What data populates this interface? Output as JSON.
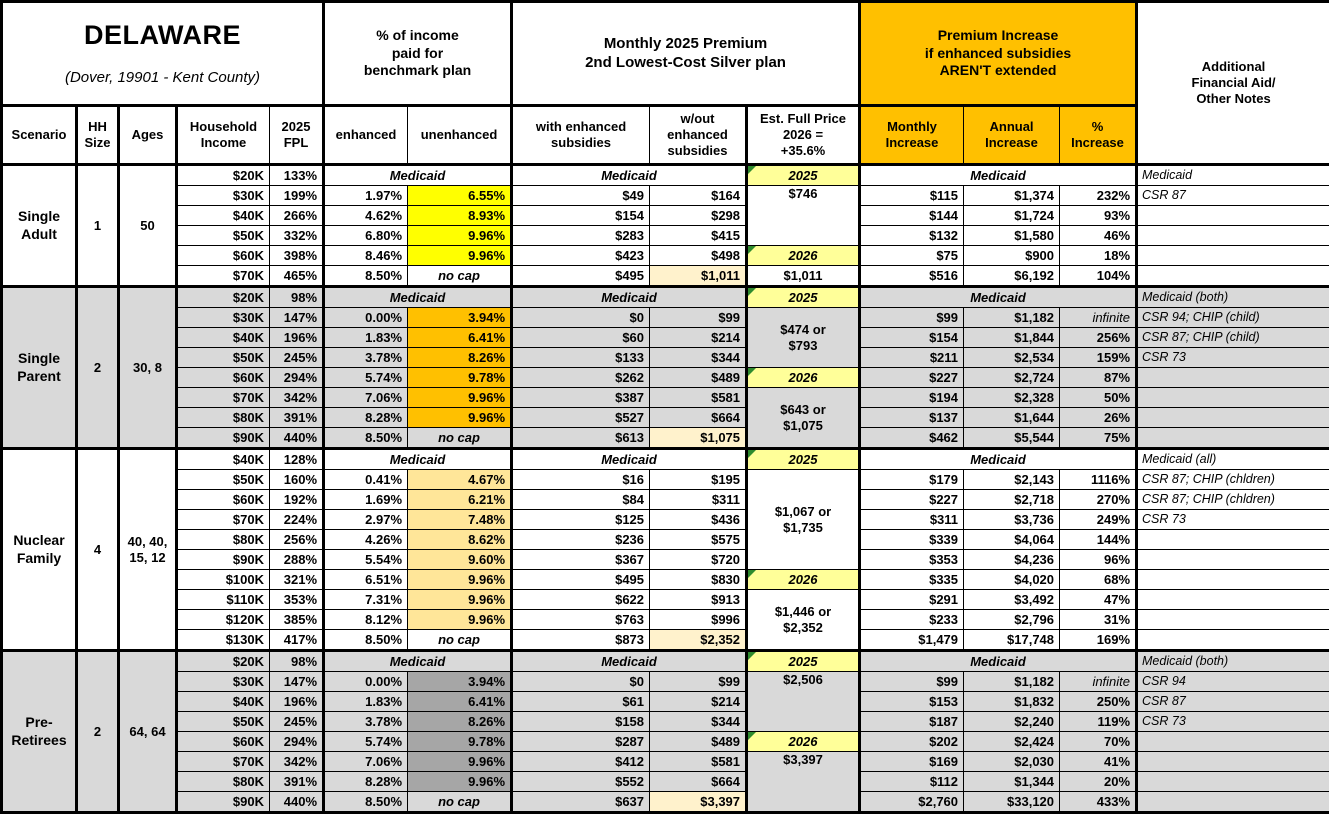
{
  "title": "DELAWARE",
  "subtitle": "(Dover, 19901 - Kent County)",
  "labels": {
    "medicaid": "Medicaid",
    "no_cap": "no cap"
  },
  "group_headers": {
    "pct_income": "% of income\npaid for\nbenchmark plan",
    "premium": "Monthly 2025 Premium\n2nd Lowest-Cost Silver plan",
    "increase": "Premium Increase\nif enhanced subsidies\nAREN'T extended",
    "notes": "Additional\nFinancial Aid/\nOther Notes"
  },
  "col_headers": {
    "scenario": "Scenario",
    "hh": "HH\nSize",
    "ages": "Ages",
    "income": "Household\nIncome",
    "fpl": "2025\nFPL",
    "enhanced": "enhanced",
    "unenhanced": "unenhanced",
    "with_sub": "with enhanced\nsubsidies",
    "wo_sub": "w/out\nenhanced\nsubsidies",
    "full_price": "Est. Full Price\n2026 =\n+35.6%",
    "monthly": "Monthly\nIncrease",
    "annual": "Annual\nIncrease",
    "pct": "%\nIncrease"
  },
  "colors": {
    "header_orange": "#FFC000",
    "section_shade": "#D9D9D9",
    "year_highlight": "#FFFF99",
    "full_price_highlight": "#FFF2CC",
    "single_adult_unenhanced": "#FFFF00",
    "single_parent_unenhanced": "#FFC000",
    "nuclear_family_unenhanced": "#FFE699",
    "pre_retirees_unenhanced": "#A6A6A6",
    "comment_triangle_green": "#2E8B2E"
  },
  "sections": [
    {
      "name": "Single\nAdult",
      "hh_size": "1",
      "ages": "50",
      "shaded": false,
      "unenhanced_color": "#FFFF00",
      "rows": [
        {
          "income": "$20K",
          "fpl": "133%",
          "medicaid": true,
          "fp": {
            "text": "2025",
            "year": true
          },
          "note": "Medicaid"
        },
        {
          "income": "$30K",
          "fpl": "199%",
          "enh": "1.97%",
          "unenh": "6.55%",
          "ws": "$49",
          "wo": "$164",
          "fp": {
            "text": "$746",
            "span": 3,
            "top": true
          },
          "mo": "$115",
          "an": "$1,374",
          "pc": "232%",
          "note": "CSR 87"
        },
        {
          "income": "$40K",
          "fpl": "266%",
          "enh": "4.62%",
          "unenh": "8.93%",
          "ws": "$154",
          "wo": "$298",
          "mo": "$144",
          "an": "$1,724",
          "pc": "93%"
        },
        {
          "income": "$50K",
          "fpl": "332%",
          "enh": "6.80%",
          "unenh": "9.96%",
          "ws": "$283",
          "wo": "$415",
          "mo": "$132",
          "an": "$1,580",
          "pc": "46%"
        },
        {
          "income": "$60K",
          "fpl": "398%",
          "enh": "8.46%",
          "unenh": "9.96%",
          "ws": "$423",
          "wo": "$498",
          "fp": {
            "text": "2026",
            "year": true
          },
          "mo": "$75",
          "an": "$900",
          "pc": "18%"
        },
        {
          "income": "$70K",
          "fpl": "465%",
          "enh": "8.50%",
          "no_cap": true,
          "ws": "$495",
          "wo": "$1,011",
          "wo_hl": true,
          "fp": {
            "text": "$1,011"
          },
          "mo": "$516",
          "an": "$6,192",
          "pc": "104%"
        }
      ]
    },
    {
      "name": "Single\nParent",
      "hh_size": "2",
      "ages": "30, 8",
      "shaded": true,
      "unenhanced_color": "#FFC000",
      "rows": [
        {
          "income": "$20K",
          "fpl": "98%",
          "medicaid": true,
          "fp": {
            "text": "2025",
            "year": true
          },
          "note": "Medicaid (both)"
        },
        {
          "income": "$30K",
          "fpl": "147%",
          "enh": "0.00%",
          "unenh": "3.94%",
          "ws": "$0",
          "wo": "$99",
          "fp": {
            "text": "$474 or\n$793",
            "span": 3
          },
          "mo": "$99",
          "an": "$1,182",
          "pc": "infinite",
          "pct_italic": true,
          "note": "CSR 94; CHIP (child)"
        },
        {
          "income": "$40K",
          "fpl": "196%",
          "enh": "1.83%",
          "unenh": "6.41%",
          "ws": "$60",
          "wo": "$214",
          "mo": "$154",
          "an": "$1,844",
          "pc": "256%",
          "note": "CSR 87; CHIP (child)"
        },
        {
          "income": "$50K",
          "fpl": "245%",
          "enh": "3.78%",
          "unenh": "8.26%",
          "ws": "$133",
          "wo": "$344",
          "mo": "$211",
          "an": "$2,534",
          "pc": "159%",
          "note": "CSR 73"
        },
        {
          "income": "$60K",
          "fpl": "294%",
          "enh": "5.74%",
          "unenh": "9.78%",
          "ws": "$262",
          "wo": "$489",
          "fp": {
            "text": "2026",
            "year": true
          },
          "mo": "$227",
          "an": "$2,724",
          "pc": "87%"
        },
        {
          "income": "$70K",
          "fpl": "342%",
          "enh": "7.06%",
          "unenh": "9.96%",
          "ws": "$387",
          "wo": "$581",
          "fp": {
            "text": "$643 or\n$1,075",
            "span": 3
          },
          "mo": "$194",
          "an": "$2,328",
          "pc": "50%"
        },
        {
          "income": "$80K",
          "fpl": "391%",
          "enh": "8.28%",
          "unenh": "9.96%",
          "ws": "$527",
          "wo": "$664",
          "mo": "$137",
          "an": "$1,644",
          "pc": "26%"
        },
        {
          "income": "$90K",
          "fpl": "440%",
          "enh": "8.50%",
          "no_cap": true,
          "ws": "$613",
          "wo": "$1,075",
          "wo_hl": true,
          "mo": "$462",
          "an": "$5,544",
          "pc": "75%"
        }
      ]
    },
    {
      "name": "Nuclear\nFamily",
      "hh_size": "4",
      "ages": "40, 40,\n15, 12",
      "shaded": false,
      "unenhanced_color": "#FFE699",
      "rows": [
        {
          "income": "$40K",
          "fpl": "128%",
          "medicaid": true,
          "fp": {
            "text": "2025",
            "year": true
          },
          "note": "Medicaid (all)"
        },
        {
          "income": "$50K",
          "fpl": "160%",
          "enh": "0.41%",
          "unenh": "4.67%",
          "ws": "$16",
          "wo": "$195",
          "fp": {
            "text": "$1,067 or\n$1,735",
            "span": 5
          },
          "mo": "$179",
          "an": "$2,143",
          "pc": "1116%",
          "note": "CSR 87; CHIP (chldren)"
        },
        {
          "income": "$60K",
          "fpl": "192%",
          "enh": "1.69%",
          "unenh": "6.21%",
          "ws": "$84",
          "wo": "$311",
          "mo": "$227",
          "an": "$2,718",
          "pc": "270%",
          "note": "CSR 87; CHIP (chldren)"
        },
        {
          "income": "$70K",
          "fpl": "224%",
          "enh": "2.97%",
          "unenh": "7.48%",
          "ws": "$125",
          "wo": "$436",
          "mo": "$311",
          "an": "$3,736",
          "pc": "249%",
          "note": "CSR 73"
        },
        {
          "income": "$80K",
          "fpl": "256%",
          "enh": "4.26%",
          "unenh": "8.62%",
          "ws": "$236",
          "wo": "$575",
          "mo": "$339",
          "an": "$4,064",
          "pc": "144%"
        },
        {
          "income": "$90K",
          "fpl": "288%",
          "enh": "5.54%",
          "unenh": "9.60%",
          "ws": "$367",
          "wo": "$720",
          "mo": "$353",
          "an": "$4,236",
          "pc": "96%"
        },
        {
          "income": "$100K",
          "fpl": "321%",
          "enh": "6.51%",
          "unenh": "9.96%",
          "ws": "$495",
          "wo": "$830",
          "fp": {
            "text": "2026",
            "year": true
          },
          "mo": "$335",
          "an": "$4,020",
          "pc": "68%"
        },
        {
          "income": "$110K",
          "fpl": "353%",
          "enh": "7.31%",
          "unenh": "9.96%",
          "ws": "$622",
          "wo": "$913",
          "fp": {
            "text": "$1,446 or\n$2,352",
            "span": 3
          },
          "mo": "$291",
          "an": "$3,492",
          "pc": "47%"
        },
        {
          "income": "$120K",
          "fpl": "385%",
          "enh": "8.12%",
          "unenh": "9.96%",
          "ws": "$763",
          "wo": "$996",
          "mo": "$233",
          "an": "$2,796",
          "pc": "31%"
        },
        {
          "income": "$130K",
          "fpl": "417%",
          "enh": "8.50%",
          "no_cap": true,
          "ws": "$873",
          "wo": "$2,352",
          "wo_hl": true,
          "mo": "$1,479",
          "an": "$17,748",
          "pc": "169%"
        }
      ]
    },
    {
      "name": "Pre-\nRetirees",
      "hh_size": "2",
      "ages": "64, 64",
      "shaded": true,
      "unenhanced_color": "#A6A6A6",
      "rows": [
        {
          "income": "$20K",
          "fpl": "98%",
          "medicaid": true,
          "fp": {
            "text": "2025",
            "year": true
          },
          "note": "Medicaid (both)"
        },
        {
          "income": "$30K",
          "fpl": "147%",
          "enh": "0.00%",
          "unenh": "3.94%",
          "ws": "$0",
          "wo": "$99",
          "fp": {
            "text": "$2,506",
            "span": 3,
            "top": true
          },
          "mo": "$99",
          "an": "$1,182",
          "pc": "infinite",
          "pct_italic": true,
          "note": "CSR 94"
        },
        {
          "income": "$40K",
          "fpl": "196%",
          "enh": "1.83%",
          "unenh": "6.41%",
          "ws": "$61",
          "wo": "$214",
          "mo": "$153",
          "an": "$1,832",
          "pc": "250%",
          "note": "CSR 87"
        },
        {
          "income": "$50K",
          "fpl": "245%",
          "enh": "3.78%",
          "unenh": "8.26%",
          "ws": "$158",
          "wo": "$344",
          "mo": "$187",
          "an": "$2,240",
          "pc": "119%",
          "note": "CSR 73"
        },
        {
          "income": "$60K",
          "fpl": "294%",
          "enh": "5.74%",
          "unenh": "9.78%",
          "ws": "$287",
          "wo": "$489",
          "fp": {
            "text": "2026",
            "year": true
          },
          "mo": "$202",
          "an": "$2,424",
          "pc": "70%"
        },
        {
          "income": "$70K",
          "fpl": "342%",
          "enh": "7.06%",
          "unenh": "9.96%",
          "ws": "$412",
          "wo": "$581",
          "fp": {
            "text": "$3,397",
            "span": 3,
            "top": true
          },
          "mo": "$169",
          "an": "$2,030",
          "pc": "41%"
        },
        {
          "income": "$80K",
          "fpl": "391%",
          "enh": "8.28%",
          "unenh": "9.96%",
          "ws": "$552",
          "wo": "$664",
          "mo": "$112",
          "an": "$1,344",
          "pc": "20%"
        },
        {
          "income": "$90K",
          "fpl": "440%",
          "enh": "8.50%",
          "no_cap": true,
          "ws": "$637",
          "wo": "$3,397",
          "wo_hl": true,
          "mo": "$2,760",
          "an": "$33,120",
          "pc": "433%"
        }
      ]
    }
  ]
}
